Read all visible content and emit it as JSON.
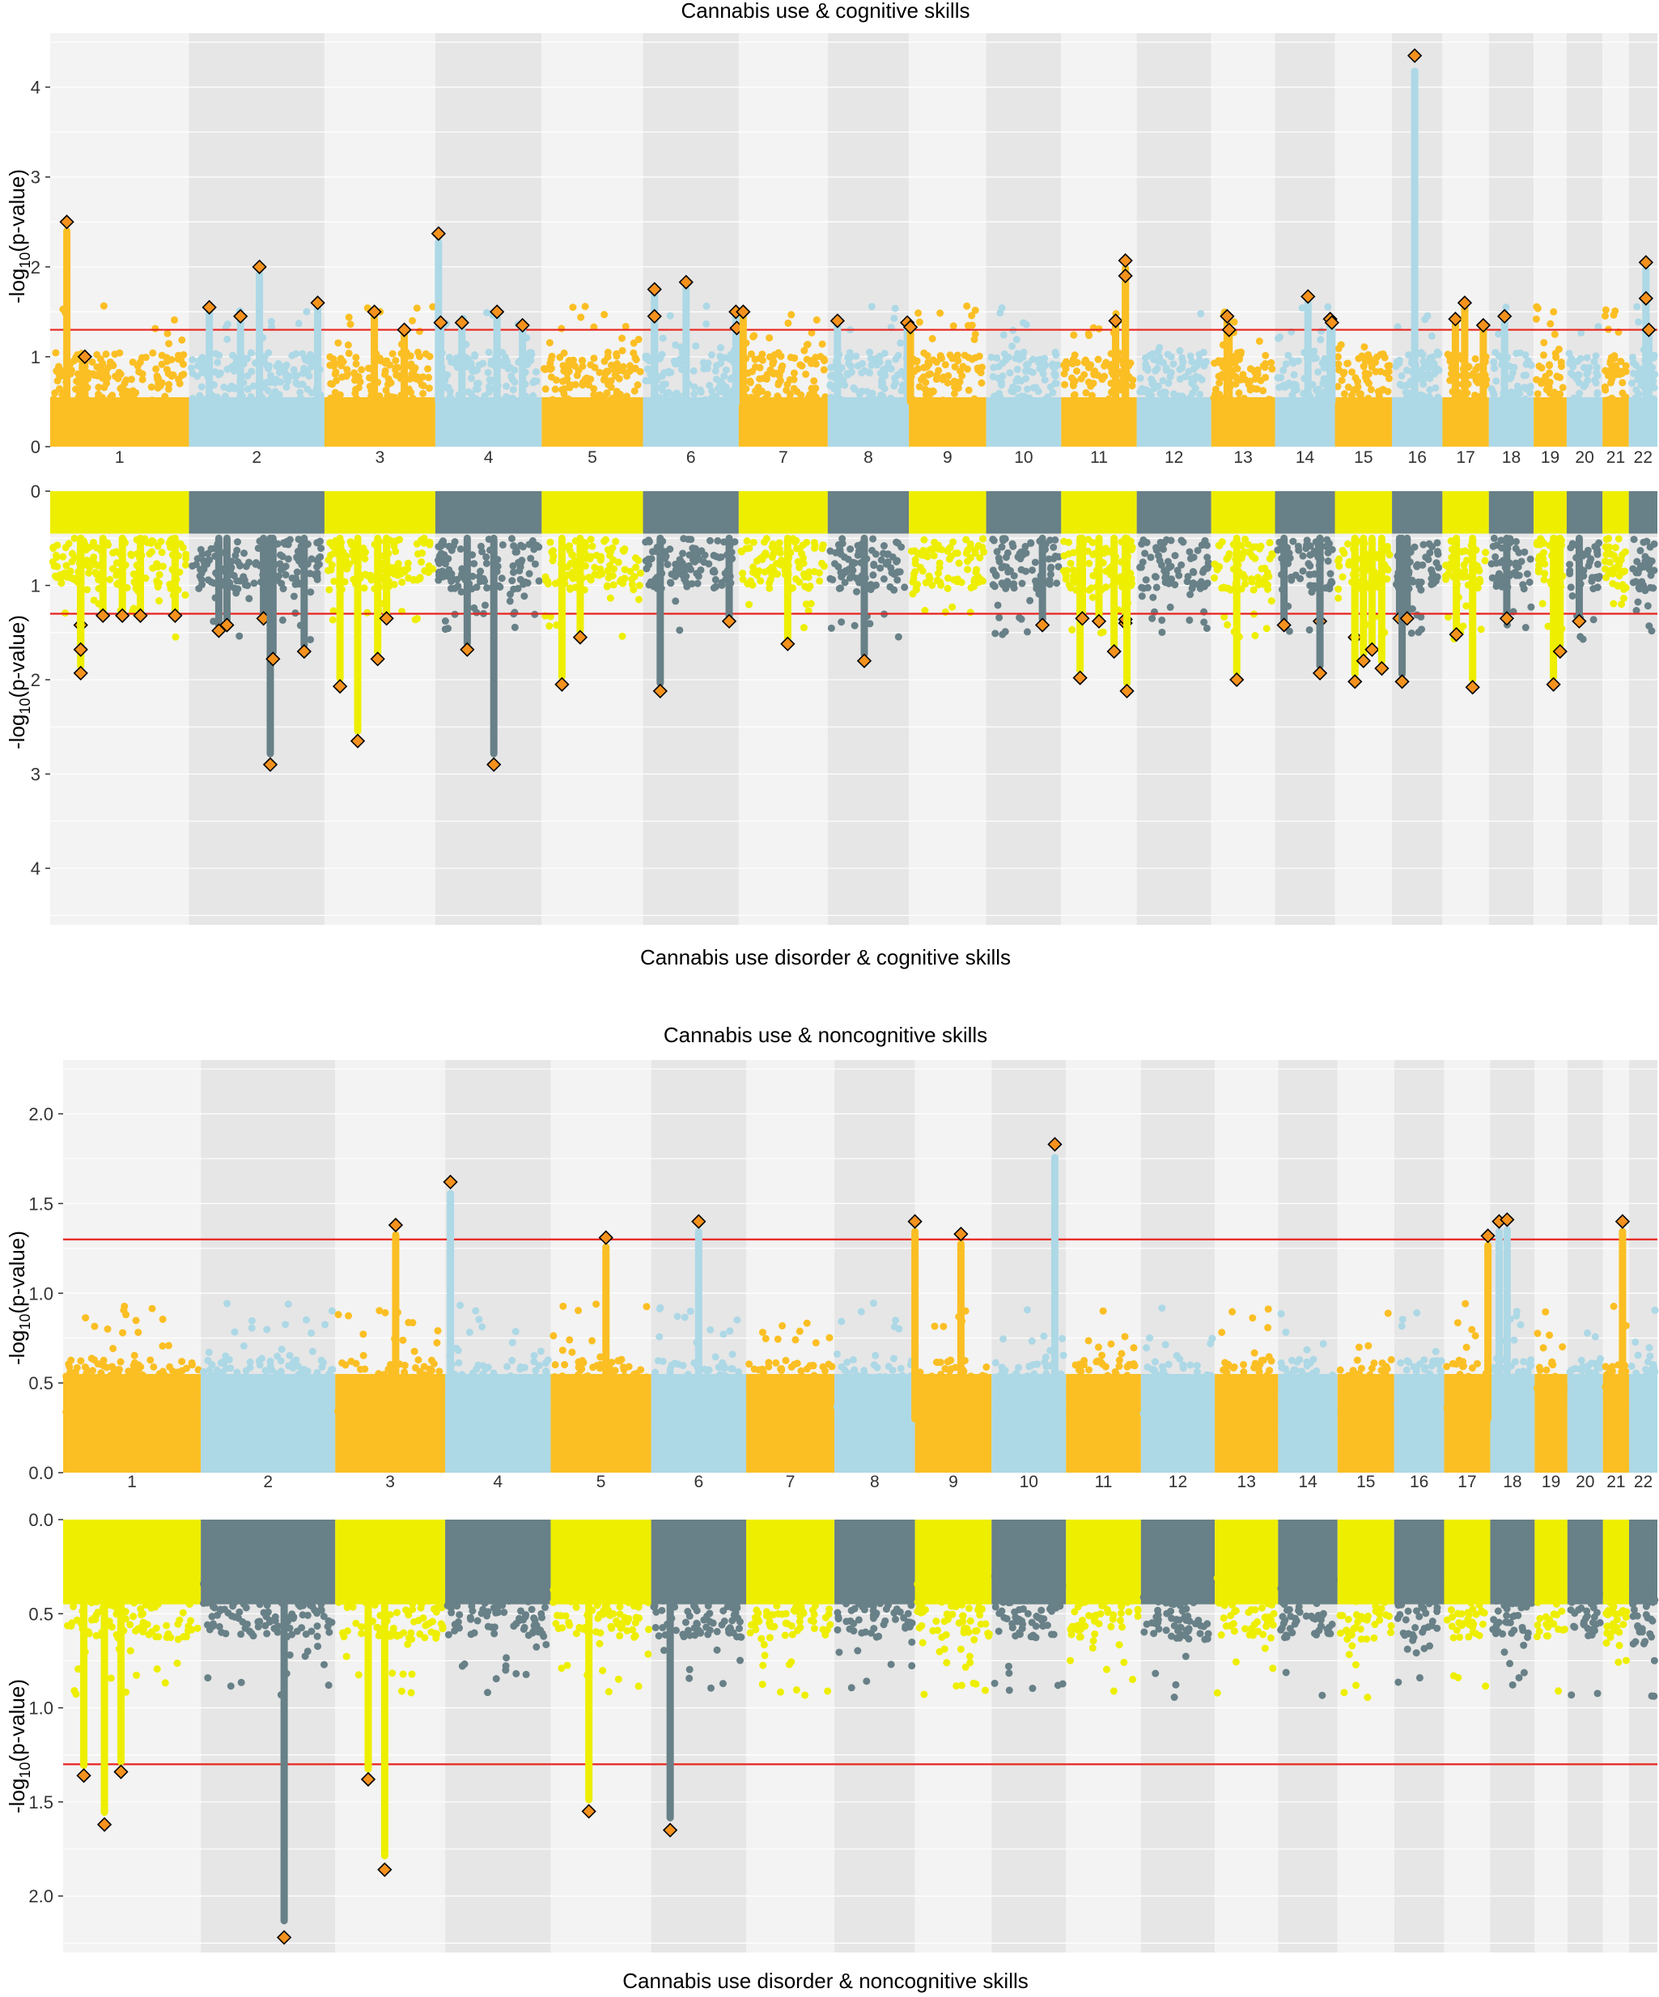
{
  "figure": {
    "colors": {
      "band_light": "#f3f3f3",
      "band_dark": "#e6e6e6",
      "grid": "#ffffff",
      "use_chr_a": "#fbbf24",
      "use_chr_b": "#add8e6",
      "disorder_chr_a": "#eeee00",
      "disorder_chr_b": "#688087",
      "highlight_fill": "#f5921e",
      "highlight_stroke": "#000000",
      "threshold": "#e8231c",
      "text": "#000000"
    }
  },
  "chart_data": [
    {
      "type": "scatter",
      "subtype": "miami-plot",
      "panel": "cognitive",
      "title_top": "Cannabis use & cognitive skills",
      "title_bottom": "Cannabis use disorder & cognitive skills",
      "ylabel": "-log10(p-value)",
      "ylabel_main": "-log",
      "ylabel_sub": "10",
      "ylabel_tail": "(p-value)",
      "threshold": 1.3,
      "ylim": [
        0,
        4.6
      ],
      "yticks": [
        "0",
        "1",
        "2",
        "3",
        "4"
      ],
      "ytick_values": [
        0,
        1,
        2,
        3,
        4
      ],
      "chromosomes": [
        "1",
        "2",
        "3",
        "4",
        "5",
        "6",
        "7",
        "8",
        "9",
        "10",
        "11",
        "12",
        "13",
        "14",
        "15",
        "16",
        "17",
        "18",
        "19",
        "20",
        "21",
        "22"
      ],
      "chr_lengths": [
        248,
        242,
        198,
        190,
        181,
        171,
        159,
        145,
        138,
        134,
        135,
        133,
        114,
        107,
        102,
        90,
        83,
        80,
        59,
        64,
        47,
        51
      ],
      "top_peaks": [
        [
          1,
          0.12,
          2.5
        ],
        [
          1,
          0.25,
          1.0
        ],
        [
          2,
          0.15,
          1.55
        ],
        [
          2,
          0.38,
          1.45
        ],
        [
          2,
          0.52,
          2.0
        ],
        [
          2,
          0.95,
          1.6
        ],
        [
          3,
          0.45,
          1.5
        ],
        [
          3,
          0.72,
          1.3
        ],
        [
          4,
          0.03,
          2.37
        ],
        [
          4,
          0.05,
          1.38
        ],
        [
          4,
          0.25,
          1.38
        ],
        [
          4,
          0.58,
          1.5
        ],
        [
          4,
          0.82,
          1.35
        ],
        [
          6,
          0.12,
          1.75
        ],
        [
          6,
          0.12,
          1.45
        ],
        [
          6,
          0.45,
          1.83
        ],
        [
          6,
          0.97,
          1.5
        ],
        [
          6,
          0.98,
          1.32
        ],
        [
          7,
          0.05,
          1.5
        ],
        [
          8,
          0.12,
          1.4
        ],
        [
          8,
          0.98,
          1.38
        ],
        [
          9,
          0.02,
          1.33
        ],
        [
          11,
          0.72,
          1.4
        ],
        [
          11,
          0.85,
          2.07
        ],
        [
          11,
          0.85,
          1.9
        ],
        [
          13,
          0.25,
          1.45
        ],
        [
          13,
          0.28,
          1.3
        ],
        [
          14,
          0.55,
          1.67
        ],
        [
          14,
          0.92,
          1.42
        ],
        [
          14,
          0.95,
          1.38
        ],
        [
          16,
          0.45,
          4.35
        ],
        [
          17,
          0.28,
          1.42
        ],
        [
          17,
          0.48,
          1.6
        ],
        [
          17,
          0.88,
          1.35
        ],
        [
          18,
          0.35,
          1.45
        ],
        [
          22,
          0.6,
          2.05
        ],
        [
          22,
          0.6,
          1.65
        ],
        [
          22,
          0.7,
          1.3
        ]
      ],
      "bottom_peaks": [
        [
          1,
          0.22,
          1.42
        ],
        [
          1,
          0.22,
          1.93
        ],
        [
          1,
          0.22,
          1.68
        ],
        [
          1,
          0.38,
          1.32
        ],
        [
          1,
          0.52,
          1.32
        ],
        [
          1,
          0.65,
          1.32
        ],
        [
          1,
          0.9,
          1.32
        ],
        [
          2,
          0.22,
          1.48
        ],
        [
          2,
          0.28,
          1.42
        ],
        [
          2,
          0.55,
          1.35
        ],
        [
          2,
          0.6,
          2.9
        ],
        [
          2,
          0.62,
          1.78
        ],
        [
          2,
          0.85,
          1.7
        ],
        [
          3,
          0.14,
          2.07
        ],
        [
          3,
          0.3,
          2.65
        ],
        [
          3,
          0.48,
          1.78
        ],
        [
          3,
          0.56,
          1.35
        ],
        [
          4,
          0.3,
          1.68
        ],
        [
          4,
          0.55,
          2.9
        ],
        [
          5,
          0.2,
          2.05
        ],
        [
          5,
          0.38,
          1.55
        ],
        [
          6,
          0.18,
          2.12
        ],
        [
          6,
          0.9,
          1.38
        ],
        [
          7,
          0.55,
          1.62
        ],
        [
          8,
          0.45,
          1.8
        ],
        [
          10,
          0.75,
          1.42
        ],
        [
          11,
          0.25,
          1.98
        ],
        [
          11,
          0.28,
          1.35
        ],
        [
          11,
          0.5,
          1.38
        ],
        [
          11,
          0.7,
          1.7
        ],
        [
          11,
          0.85,
          1.4
        ],
        [
          11,
          0.85,
          1.36
        ],
        [
          11,
          0.87,
          2.12
        ],
        [
          13,
          0.4,
          2.0
        ],
        [
          14,
          0.15,
          1.42
        ],
        [
          14,
          0.75,
          1.38
        ],
        [
          14,
          0.75,
          1.93
        ],
        [
          15,
          0.35,
          1.55
        ],
        [
          15,
          0.35,
          2.02
        ],
        [
          15,
          0.5,
          1.8
        ],
        [
          15,
          0.65,
          1.68
        ],
        [
          15,
          0.82,
          1.88
        ],
        [
          16,
          0.15,
          1.35
        ],
        [
          16,
          0.2,
          2.02
        ],
        [
          16,
          0.3,
          1.35
        ],
        [
          17,
          0.3,
          1.52
        ],
        [
          17,
          0.65,
          2.08
        ],
        [
          18,
          0.4,
          1.35
        ],
        [
          19,
          0.6,
          2.05
        ],
        [
          19,
          0.8,
          1.7
        ],
        [
          20,
          0.35,
          1.38
        ]
      ]
    },
    {
      "type": "scatter",
      "subtype": "miami-plot",
      "panel": "noncognitive",
      "title_top": "Cannabis use & noncognitive skills",
      "title_bottom": "Cannabis use disorder & noncognitive skills",
      "ylabel": "-log10(p-value)",
      "ylabel_main": "-log",
      "ylabel_sub": "10",
      "ylabel_tail": "(p-value)",
      "threshold": 1.3,
      "ylim": [
        0,
        2.3
      ],
      "yticks": [
        "0.0",
        "0.5",
        "1.0",
        "1.5",
        "2.0"
      ],
      "ytick_values": [
        0,
        0.5,
        1.0,
        1.5,
        2.0
      ],
      "chromosomes": [
        "1",
        "2",
        "3",
        "4",
        "5",
        "6",
        "7",
        "8",
        "9",
        "10",
        "11",
        "12",
        "13",
        "14",
        "15",
        "16",
        "17",
        "18",
        "19",
        "20",
        "21",
        "22"
      ],
      "chr_lengths": [
        248,
        242,
        198,
        190,
        181,
        171,
        159,
        145,
        138,
        134,
        135,
        133,
        114,
        107,
        102,
        90,
        83,
        80,
        59,
        64,
        47,
        51
      ],
      "top_peaks": [
        [
          3,
          0.55,
          1.38
        ],
        [
          4,
          0.05,
          1.62
        ],
        [
          5,
          0.55,
          1.31
        ],
        [
          6,
          0.5,
          1.4
        ],
        [
          9,
          0.0,
          1.4
        ],
        [
          9,
          0.6,
          1.33
        ],
        [
          10,
          0.85,
          1.83
        ],
        [
          17,
          0.95,
          1.32
        ],
        [
          18,
          0.2,
          1.4
        ],
        [
          18,
          0.38,
          1.41
        ],
        [
          21,
          0.75,
          1.4
        ]
      ],
      "bottom_peaks": [
        [
          1,
          0.15,
          1.36
        ],
        [
          1,
          0.3,
          1.62
        ],
        [
          1,
          0.42,
          1.34
        ],
        [
          3,
          0.3,
          1.38
        ],
        [
          3,
          0.45,
          1.86
        ],
        [
          2,
          0.62,
          2.22
        ],
        [
          5,
          0.38,
          1.55
        ],
        [
          6,
          0.2,
          1.65
        ]
      ]
    }
  ]
}
